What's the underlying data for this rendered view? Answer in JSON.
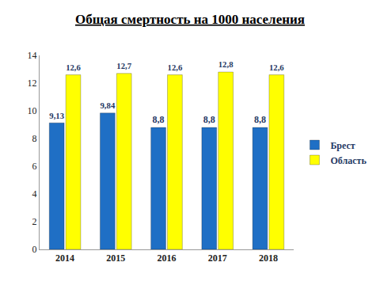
{
  "chart_data": {
    "type": "bar",
    "title": "Общая смертность на 1000 населения",
    "categories": [
      "2014",
      "2015",
      "2016",
      "2017",
      "2018"
    ],
    "series": [
      {
        "name": "Брест",
        "color": "#1f6fc5",
        "values": [
          9.13,
          9.84,
          8.8,
          8.8,
          8.8
        ],
        "value_labels": [
          "9,13",
          "9,84",
          "8,8",
          "8,8",
          "8,8"
        ]
      },
      {
        "name": "Область",
        "color": "#ffff00",
        "values": [
          12.6,
          12.7,
          12.6,
          12.8,
          12.6
        ],
        "value_labels": [
          "12,6",
          "12,7",
          "12,6",
          "12,8",
          "12,6"
        ]
      }
    ],
    "ylim": [
      0,
      14
    ],
    "yticks": [
      0,
      2,
      4,
      6,
      8,
      10,
      12,
      14
    ],
    "grid": false,
    "legend": "right",
    "data_labels": true
  }
}
